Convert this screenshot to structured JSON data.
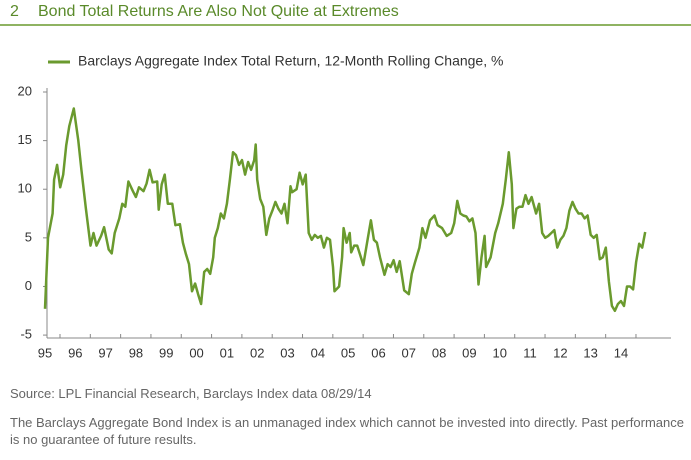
{
  "figure_number": "2",
  "chart_data": {
    "type": "line",
    "title": "Bond Total Returns Are Also Not Quite at Extremes",
    "x": [
      1995.0,
      1995.1,
      1995.25,
      1995.3,
      1995.4,
      1995.5,
      1995.6,
      1995.7,
      1995.8,
      1995.95,
      1996.1,
      1996.2,
      1996.35,
      1996.5,
      1996.6,
      1996.7,
      1996.85,
      1996.95,
      1997.1,
      1997.2,
      1997.3,
      1997.45,
      1997.55,
      1997.65,
      1997.75,
      1997.9,
      1998.0,
      1998.1,
      1998.25,
      1998.35,
      1998.45,
      1998.55,
      1998.7,
      1998.75,
      1998.85,
      1998.95,
      1999.05,
      1999.2,
      1999.3,
      1999.45,
      1999.55,
      1999.65,
      1999.75,
      1999.85,
      1999.95,
      2000.05,
      2000.15,
      2000.25,
      2000.35,
      2000.45,
      2000.55,
      2000.6,
      2000.7,
      2000.8,
      2000.9,
      2001.0,
      2001.1,
      2001.2,
      2001.3,
      2001.4,
      2001.5,
      2001.6,
      2001.7,
      2001.8,
      2001.9,
      2001.95,
      2002.0,
      2002.1,
      2002.2,
      2002.3,
      2002.4,
      2002.5,
      2002.6,
      2002.7,
      2002.8,
      2002.9,
      2003.0,
      2003.1,
      2003.15,
      2003.3,
      2003.4,
      2003.5,
      2003.6,
      2003.7,
      2003.8,
      2003.9,
      2004.0,
      2004.1,
      2004.2,
      2004.3,
      2004.4,
      2004.5,
      2004.55,
      2004.7,
      2004.8,
      2004.85,
      2004.95,
      2005.05,
      2005.1,
      2005.2,
      2005.3,
      2005.4,
      2005.5,
      2005.65,
      2005.75,
      2005.85,
      2005.95,
      2006.05,
      2006.2,
      2006.3,
      2006.4,
      2006.5,
      2006.6,
      2006.7,
      2006.85,
      2007.0,
      2007.1,
      2007.2,
      2007.35,
      2007.45,
      2007.55,
      2007.7,
      2007.85,
      2007.95,
      2008.1,
      2008.25,
      2008.4,
      2008.5,
      2008.6,
      2008.7,
      2008.8,
      2008.9,
      2009.0,
      2009.1,
      2009.2,
      2009.3,
      2009.4,
      2009.5,
      2009.55,
      2009.7,
      2009.85,
      2009.95,
      2010.1,
      2010.2,
      2010.3,
      2010.4,
      2010.45,
      2010.55,
      2010.65,
      2010.75,
      2010.85,
      2010.95,
      2011.05,
      2011.2,
      2011.3,
      2011.4,
      2011.5,
      2011.6,
      2011.7,
      2011.8,
      2011.9,
      2012.0,
      2012.1,
      2012.2,
      2012.3,
      2012.4,
      2012.5,
      2012.6,
      2012.7,
      2012.8,
      2012.9,
      2013.0,
      2013.1,
      2013.2,
      2013.3,
      2013.4,
      2013.5,
      2013.6,
      2013.7,
      2013.8,
      2013.9,
      2014.0,
      2014.1,
      2014.2,
      2014.3,
      2014.4,
      2014.5,
      2014.6,
      2014.7,
      2014.8
    ],
    "series": [
      {
        "name": "Barclays Aggregate Index Total Return, 12-Month Rolling Change, %",
        "color": "#6a9a2e",
        "values": [
          -2.3,
          5,
          7.5,
          11,
          12.5,
          10.2,
          11.5,
          14.5,
          16.5,
          18.3,
          15,
          12,
          8,
          4.2,
          5.5,
          4.2,
          5.2,
          6.1,
          3.8,
          3.4,
          5.5,
          7,
          8.5,
          8.2,
          10.8,
          9.8,
          9.2,
          10.2,
          9.8,
          10.6,
          12,
          10.7,
          10.8,
          7.9,
          10.5,
          11.5,
          8.5,
          8.5,
          6.3,
          6.4,
          4.5,
          3.3,
          2.3,
          -0.5,
          0.3,
          -0.8,
          -1.8,
          1.5,
          1.8,
          1.3,
          3,
          5,
          6,
          7.5,
          7,
          8.5,
          11,
          13.8,
          13.5,
          12.5,
          13,
          11.5,
          12.8,
          12,
          13,
          14.6,
          11,
          9,
          8.2,
          5.3,
          7,
          7.8,
          8.7,
          8,
          7.5,
          8.5,
          6.5,
          10.3,
          9.7,
          10,
          11.7,
          10.5,
          11.5,
          5.5,
          4.8,
          5.3,
          5,
          5.2,
          4,
          5,
          4.8,
          2,
          -0.5,
          0,
          3,
          6,
          4.5,
          5.5,
          3.5,
          4.2,
          4.2,
          3.2,
          2.2,
          5,
          6.8,
          4.8,
          4.5,
          3,
          1.2,
          2.3,
          2,
          2.7,
          1.5,
          2.6,
          -0.4,
          -0.8,
          1.3,
          2.4,
          4,
          6,
          5,
          6.8,
          7.3,
          6.3,
          6,
          5.2,
          5.5,
          6.5,
          8.8,
          7.5,
          7.3,
          7.2,
          6.7,
          7,
          5.5,
          0.2,
          3,
          5.2,
          2,
          3,
          5.5,
          6.5,
          8.5,
          11,
          13.8,
          10.5,
          6,
          8,
          8.2,
          8.2,
          9.4,
          8.5,
          9.2,
          7.5,
          8.5,
          5.5,
          5,
          5.2,
          5.5,
          5.8,
          4,
          4.8,
          5.2,
          6,
          7.8,
          8.7,
          8,
          7.5,
          7.5,
          7,
          7.3,
          5.3,
          5,
          5.3,
          2.8,
          3,
          4,
          0.5,
          -2,
          -2.5,
          -1.8,
          -1.5,
          -2,
          0,
          0,
          -0.3,
          2.5,
          4.4,
          4,
          5.6
        ]
      }
    ],
    "xlim": [
      1995,
      2015.65
    ],
    "xticks": [
      {
        "value": 1995,
        "label": "95"
      },
      {
        "value": 1996,
        "label": "96"
      },
      {
        "value": 1997,
        "label": "97"
      },
      {
        "value": 1998,
        "label": "98"
      },
      {
        "value": 1999,
        "label": "99"
      },
      {
        "value": 2000,
        "label": "00"
      },
      {
        "value": 2001,
        "label": "01"
      },
      {
        "value": 2002,
        "label": "02"
      },
      {
        "value": 2003,
        "label": "03"
      },
      {
        "value": 2004,
        "label": "04"
      },
      {
        "value": 2005,
        "label": "05"
      },
      {
        "value": 2006,
        "label": "06"
      },
      {
        "value": 2007,
        "label": "07"
      },
      {
        "value": 2008,
        "label": "08"
      },
      {
        "value": 2009,
        "label": "09"
      },
      {
        "value": 2010,
        "label": "10"
      },
      {
        "value": 2011,
        "label": "11"
      },
      {
        "value": 2012,
        "label": "12"
      },
      {
        "value": 2013,
        "label": "13"
      },
      {
        "value": 2014,
        "label": "14"
      }
    ],
    "ylim": [
      -5.3,
      20
    ],
    "yticks": [
      -5,
      0,
      5,
      10,
      15,
      20
    ],
    "grid": false
  },
  "source": "Source: LPL Financial Research, Barclays Index data   08/29/14",
  "disclaimer": "The Barclays Aggregate Bond Index is an unmanaged index which cannot be invested into directly. Past performance is no guarantee of future results."
}
